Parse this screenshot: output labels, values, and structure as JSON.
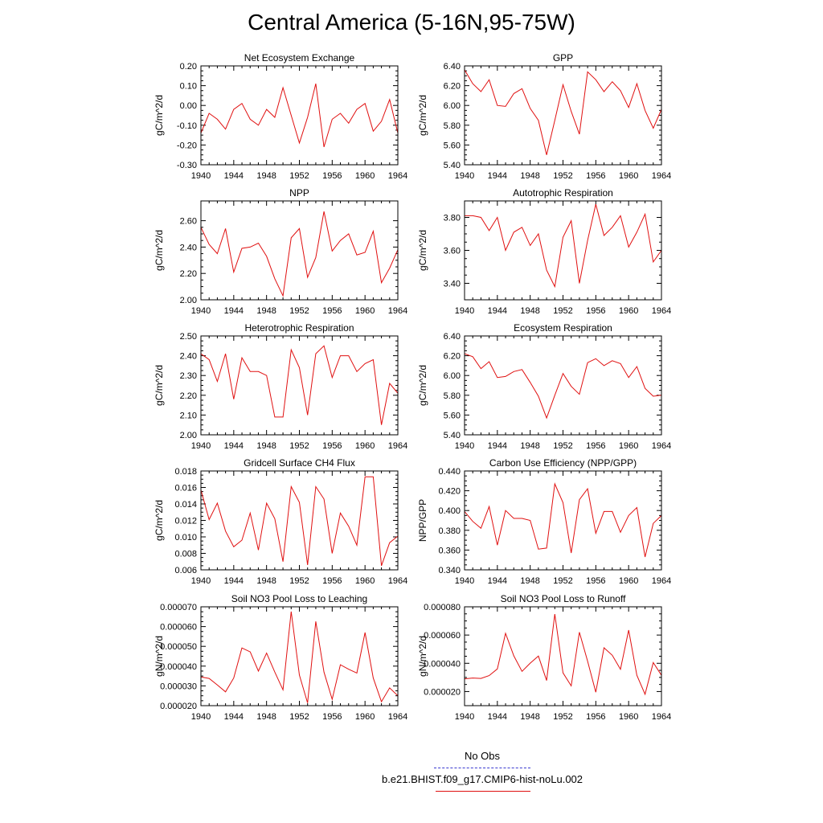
{
  "title": "Central America (5-16N,95-75W)",
  "legend": {
    "obs_label": "No Obs",
    "case_label": "b.e21.BHIST.f09_g17.CMIP6-hist-noLu.002",
    "obs_color": "#3a3ad0",
    "case_color": "#e01010"
  },
  "chart_data": [
    {
      "type": "line",
      "title": "Net Ecosystem Exchange",
      "ylabel": "gC/m^2/d",
      "xlim": [
        1940,
        1964
      ],
      "ylim": [
        -0.3,
        0.2
      ],
      "x_ticks": [
        "1940",
        "1944",
        "1948",
        "1952",
        "1956",
        "1960",
        "1964"
      ],
      "y_ticks": [
        {
          "v": -0.3,
          "label": "-0.30"
        },
        {
          "v": -0.2,
          "label": "-0.20"
        },
        {
          "v": -0.1,
          "label": "-0.10"
        },
        {
          "v": 0.0,
          "label": "0.00"
        },
        {
          "v": 0.1,
          "label": "0.10"
        },
        {
          "v": 0.2,
          "label": "0.20"
        }
      ],
      "x": [
        1940,
        1941,
        1942,
        1943,
        1944,
        1945,
        1946,
        1947,
        1948,
        1949,
        1950,
        1951,
        1952,
        1953,
        1954,
        1955,
        1956,
        1957,
        1958,
        1959,
        1960,
        1961,
        1962,
        1963,
        1964
      ],
      "values": [
        -0.14,
        -0.04,
        -0.07,
        -0.12,
        -0.02,
        0.01,
        -0.07,
        -0.1,
        -0.02,
        -0.06,
        0.09,
        -0.05,
        -0.19,
        -0.06,
        0.11,
        -0.21,
        -0.07,
        -0.04,
        -0.09,
        -0.02,
        0.01,
        -0.13,
        -0.08,
        0.03,
        -0.14
      ]
    },
    {
      "type": "line",
      "title": "GPP",
      "ylabel": "gC/m^2/d",
      "xlim": [
        1940,
        1964
      ],
      "ylim": [
        5.4,
        6.4
      ],
      "x_ticks": [
        "1940",
        "1944",
        "1948",
        "1952",
        "1956",
        "1960",
        "1964"
      ],
      "y_ticks": [
        {
          "v": 5.4,
          "label": "5.40"
        },
        {
          "v": 5.6,
          "label": "5.60"
        },
        {
          "v": 5.8,
          "label": "5.80"
        },
        {
          "v": 6.0,
          "label": "6.00"
        },
        {
          "v": 6.2,
          "label": "6.20"
        },
        {
          "v": 6.4,
          "label": "6.40"
        }
      ],
      "x": [
        1940,
        1941,
        1942,
        1943,
        1944,
        1945,
        1946,
        1947,
        1948,
        1949,
        1950,
        1951,
        1952,
        1953,
        1954,
        1955,
        1956,
        1957,
        1958,
        1959,
        1960,
        1961,
        1962,
        1963,
        1964
      ],
      "values": [
        6.36,
        6.22,
        6.14,
        6.26,
        6.0,
        5.99,
        6.12,
        6.17,
        5.97,
        5.85,
        5.5,
        5.85,
        6.21,
        5.94,
        5.71,
        6.34,
        6.26,
        6.14,
        6.24,
        6.15,
        5.98,
        6.22,
        5.95,
        5.77,
        5.96
      ]
    },
    {
      "type": "line",
      "title": "NPP",
      "ylabel": "gC/m^2/d",
      "xlim": [
        1940,
        1964
      ],
      "ylim": [
        2.0,
        2.75
      ],
      "x_ticks": [
        "1940",
        "1944",
        "1948",
        "1952",
        "1956",
        "1960",
        "1964"
      ],
      "y_ticks": [
        {
          "v": 2.0,
          "label": "2.00"
        },
        {
          "v": 2.2,
          "label": "2.20"
        },
        {
          "v": 2.4,
          "label": "2.40"
        },
        {
          "v": 2.6,
          "label": "2.60"
        }
      ],
      "x": [
        1940,
        1941,
        1942,
        1943,
        1944,
        1945,
        1946,
        1947,
        1948,
        1949,
        1950,
        1951,
        1952,
        1953,
        1954,
        1955,
        1956,
        1957,
        1958,
        1959,
        1960,
        1961,
        1962,
        1963,
        1964
      ],
      "values": [
        2.55,
        2.42,
        2.35,
        2.54,
        2.21,
        2.39,
        2.4,
        2.43,
        2.33,
        2.16,
        2.03,
        2.47,
        2.54,
        2.17,
        2.32,
        2.67,
        2.37,
        2.45,
        2.5,
        2.34,
        2.36,
        2.52,
        2.13,
        2.24,
        2.38
      ]
    },
    {
      "type": "line",
      "title": "Autotrophic Respiration",
      "ylabel": "gC/m^2/d",
      "xlim": [
        1940,
        1964
      ],
      "ylim": [
        3.3,
        3.9
      ],
      "x_ticks": [
        "1940",
        "1944",
        "1948",
        "1952",
        "1956",
        "1960",
        "1964"
      ],
      "y_ticks": [
        {
          "v": 3.4,
          "label": "3.40"
        },
        {
          "v": 3.6,
          "label": "3.60"
        },
        {
          "v": 3.8,
          "label": "3.80"
        }
      ],
      "x": [
        1940,
        1941,
        1942,
        1943,
        1944,
        1945,
        1946,
        1947,
        1948,
        1949,
        1950,
        1951,
        1952,
        1953,
        1954,
        1955,
        1956,
        1957,
        1958,
        1959,
        1960,
        1961,
        1962,
        1963,
        1964
      ],
      "values": [
        3.81,
        3.81,
        3.8,
        3.72,
        3.8,
        3.6,
        3.71,
        3.74,
        3.63,
        3.7,
        3.48,
        3.38,
        3.68,
        3.78,
        3.4,
        3.66,
        3.88,
        3.69,
        3.74,
        3.81,
        3.62,
        3.71,
        3.82,
        3.53,
        3.6
      ]
    },
    {
      "type": "line",
      "title": "Heterotrophic Respiration",
      "ylabel": "gC/m^2/d",
      "xlim": [
        1940,
        1964
      ],
      "ylim": [
        2.0,
        2.5
      ],
      "x_ticks": [
        "1940",
        "1944",
        "1948",
        "1952",
        "1956",
        "1960",
        "1964"
      ],
      "y_ticks": [
        {
          "v": 2.0,
          "label": "2.00"
        },
        {
          "v": 2.1,
          "label": "2.10"
        },
        {
          "v": 2.2,
          "label": "2.20"
        },
        {
          "v": 2.3,
          "label": "2.30"
        },
        {
          "v": 2.4,
          "label": "2.40"
        },
        {
          "v": 2.5,
          "label": "2.50"
        }
      ],
      "x": [
        1940,
        1941,
        1942,
        1943,
        1944,
        1945,
        1946,
        1947,
        1948,
        1949,
        1950,
        1951,
        1952,
        1953,
        1954,
        1955,
        1956,
        1957,
        1958,
        1959,
        1960,
        1961,
        1962,
        1963,
        1964
      ],
      "values": [
        2.41,
        2.38,
        2.27,
        2.41,
        2.18,
        2.39,
        2.32,
        2.32,
        2.3,
        2.09,
        2.09,
        2.43,
        2.34,
        2.1,
        2.41,
        2.45,
        2.29,
        2.4,
        2.4,
        2.32,
        2.36,
        2.38,
        2.05,
        2.26,
        2.21
      ]
    },
    {
      "type": "line",
      "title": "Ecosystem Respiration",
      "ylabel": "gC/m^2/d",
      "xlim": [
        1940,
        1964
      ],
      "ylim": [
        5.4,
        6.4
      ],
      "x_ticks": [
        "1940",
        "1944",
        "1948",
        "1952",
        "1956",
        "1960",
        "1964"
      ],
      "y_ticks": [
        {
          "v": 5.4,
          "label": "5.40"
        },
        {
          "v": 5.6,
          "label": "5.60"
        },
        {
          "v": 5.8,
          "label": "5.80"
        },
        {
          "v": 6.0,
          "label": "6.00"
        },
        {
          "v": 6.2,
          "label": "6.20"
        },
        {
          "v": 6.4,
          "label": "6.40"
        }
      ],
      "x": [
        1940,
        1941,
        1942,
        1943,
        1944,
        1945,
        1946,
        1947,
        1948,
        1949,
        1950,
        1951,
        1952,
        1953,
        1954,
        1955,
        1956,
        1957,
        1958,
        1959,
        1960,
        1961,
        1962,
        1963,
        1964
      ],
      "values": [
        6.22,
        6.19,
        6.07,
        6.14,
        5.98,
        5.99,
        6.04,
        6.06,
        5.93,
        5.79,
        5.57,
        5.8,
        6.02,
        5.89,
        5.81,
        6.13,
        6.17,
        6.1,
        6.15,
        6.12,
        5.98,
        6.09,
        5.87,
        5.79,
        5.8
      ]
    },
    {
      "type": "line",
      "title": "Gridcell Surface CH4 Flux",
      "ylabel": "gC/m^2/d",
      "xlim": [
        1940,
        1964
      ],
      "ylim": [
        0.006,
        0.018
      ],
      "x_ticks": [
        "1940",
        "1944",
        "1948",
        "1952",
        "1956",
        "1960",
        "1964"
      ],
      "y_ticks": [
        {
          "v": 0.006,
          "label": "0.006"
        },
        {
          "v": 0.008,
          "label": "0.008"
        },
        {
          "v": 0.01,
          "label": "0.010"
        },
        {
          "v": 0.012,
          "label": "0.012"
        },
        {
          "v": 0.014,
          "label": "0.014"
        },
        {
          "v": 0.016,
          "label": "0.016"
        },
        {
          "v": 0.018,
          "label": "0.018"
        }
      ],
      "x": [
        1940,
        1941,
        1942,
        1943,
        1944,
        1945,
        1946,
        1947,
        1948,
        1949,
        1950,
        1951,
        1952,
        1953,
        1954,
        1955,
        1956,
        1957,
        1958,
        1959,
        1960,
        1961,
        1962,
        1963,
        1964
      ],
      "values": [
        0.0157,
        0.0121,
        0.0141,
        0.0107,
        0.0088,
        0.0096,
        0.0129,
        0.0084,
        0.0141,
        0.0122,
        0.007,
        0.0161,
        0.0142,
        0.0066,
        0.0161,
        0.0146,
        0.008,
        0.0129,
        0.0113,
        0.009,
        0.0173,
        0.0173,
        0.0065,
        0.0093,
        0.0101
      ]
    },
    {
      "type": "line",
      "title": "Carbon Use Efficiency (NPP/GPP)",
      "ylabel": "NPP/GPP",
      "xlim": [
        1940,
        1964
      ],
      "ylim": [
        0.34,
        0.44
      ],
      "x_ticks": [
        "1940",
        "1944",
        "1948",
        "1952",
        "1956",
        "1960",
        "1964"
      ],
      "y_ticks": [
        {
          "v": 0.34,
          "label": "0.340"
        },
        {
          "v": 0.36,
          "label": "0.360"
        },
        {
          "v": 0.38,
          "label": "0.380"
        },
        {
          "v": 0.4,
          "label": "0.400"
        },
        {
          "v": 0.42,
          "label": "0.420"
        },
        {
          "v": 0.44,
          "label": "0.440"
        }
      ],
      "x": [
        1940,
        1941,
        1942,
        1943,
        1944,
        1945,
        1946,
        1947,
        1948,
        1949,
        1950,
        1951,
        1952,
        1953,
        1954,
        1955,
        1956,
        1957,
        1958,
        1959,
        1960,
        1961,
        1962,
        1963,
        1964
      ],
      "values": [
        0.399,
        0.389,
        0.382,
        0.404,
        0.365,
        0.4,
        0.392,
        0.392,
        0.39,
        0.361,
        0.362,
        0.427,
        0.408,
        0.357,
        0.411,
        0.422,
        0.377,
        0.399,
        0.399,
        0.378,
        0.395,
        0.403,
        0.353,
        0.387,
        0.395
      ]
    },
    {
      "type": "line",
      "title": "Soil NO3 Pool Loss to Leaching",
      "ylabel": "gN/m^2/d",
      "xlim": [
        1940,
        1964
      ],
      "ylim": [
        2e-05,
        7e-05
      ],
      "x_ticks": [
        "1940",
        "1944",
        "1948",
        "1952",
        "1956",
        "1960",
        "1964"
      ],
      "y_ticks": [
        {
          "v": 2e-05,
          "label": "0.000020"
        },
        {
          "v": 3e-05,
          "label": "0.000030"
        },
        {
          "v": 4e-05,
          "label": "0.000040"
        },
        {
          "v": 5e-05,
          "label": "0.000050"
        },
        {
          "v": 6e-05,
          "label": "0.000060"
        },
        {
          "v": 7e-05,
          "label": "0.000070"
        }
      ],
      "x": [
        1940,
        1941,
        1942,
        1943,
        1944,
        1945,
        1946,
        1947,
        1948,
        1949,
        1950,
        1951,
        1952,
        1953,
        1954,
        1955,
        1956,
        1957,
        1958,
        1959,
        1960,
        1961,
        1962,
        1963,
        1964
      ],
      "values": [
        3.45e-05,
        3.38e-05,
        3.05e-05,
        2.7e-05,
        3.4e-05,
        4.92e-05,
        4.72e-05,
        3.75e-05,
        4.66e-05,
        3.7e-05,
        2.8e-05,
        6.76e-05,
        3.55e-05,
        2.14e-05,
        6.26e-05,
        3.7e-05,
        2.32e-05,
        4.07e-05,
        3.84e-05,
        3.65e-05,
        5.7e-05,
        3.4e-05,
        2.2e-05,
        2.9e-05,
        2.5e-05
      ]
    },
    {
      "type": "line",
      "title": "Soil NO3 Pool Loss to Runoff",
      "ylabel": "gN/m^2/d",
      "xlim": [
        1940,
        1964
      ],
      "ylim": [
        1e-05,
        8e-05
      ],
      "x_ticks": [
        "1940",
        "1944",
        "1948",
        "1952",
        "1956",
        "1960",
        "1964"
      ],
      "y_ticks": [
        {
          "v": 2e-05,
          "label": "0.000020"
        },
        {
          "v": 4e-05,
          "label": "0.000040"
        },
        {
          "v": 6e-05,
          "label": "0.000060"
        },
        {
          "v": 8e-05,
          "label": "0.000080"
        }
      ],
      "x": [
        1940,
        1941,
        1942,
        1943,
        1944,
        1945,
        1946,
        1947,
        1948,
        1949,
        1950,
        1951,
        1952,
        1953,
        1954,
        1955,
        1956,
        1957,
        1958,
        1959,
        1960,
        1961,
        1962,
        1963,
        1964
      ],
      "values": [
        2.9e-05,
        2.96e-05,
        2.93e-05,
        3.13e-05,
        3.6e-05,
        6.12e-05,
        4.53e-05,
        3.43e-05,
        4.01e-05,
        4.51e-05,
        2.78e-05,
        7.48e-05,
        3.32e-05,
        2.4e-05,
        6.2e-05,
        4.15e-05,
        1.95e-05,
        5.1e-05,
        4.57e-05,
        3.58e-05,
        6.35e-05,
        3.15e-05,
        1.81e-05,
        4.05e-05,
        3.15e-05
      ]
    }
  ]
}
